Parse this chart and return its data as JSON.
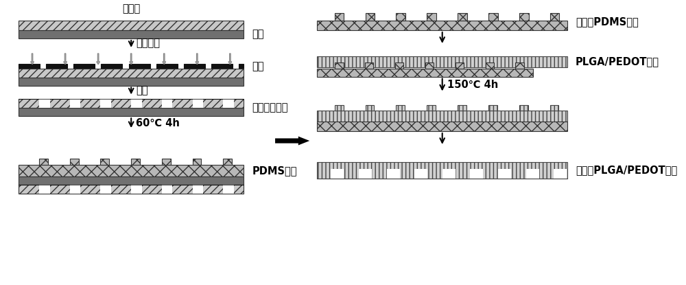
{
  "bg_color": "#ffffff",
  "left_labels": {
    "photoresist": "光刻胶",
    "silicon": "硅片",
    "uv": "紫外曝光",
    "mask_label": "掩膜",
    "wash": "洗片",
    "patterned_si": "图案化硅模板",
    "temp60": "60℃ 4h",
    "pdms_label": "PDMS溶液"
  },
  "right_labels": {
    "patterned_pdms": "图案化PDMS模板",
    "plga_pedot": "PLGA/PEDOT材料",
    "temp150": "150℃ 4h",
    "patterned_plga": "图案化PLGA/PEDOT材料"
  }
}
